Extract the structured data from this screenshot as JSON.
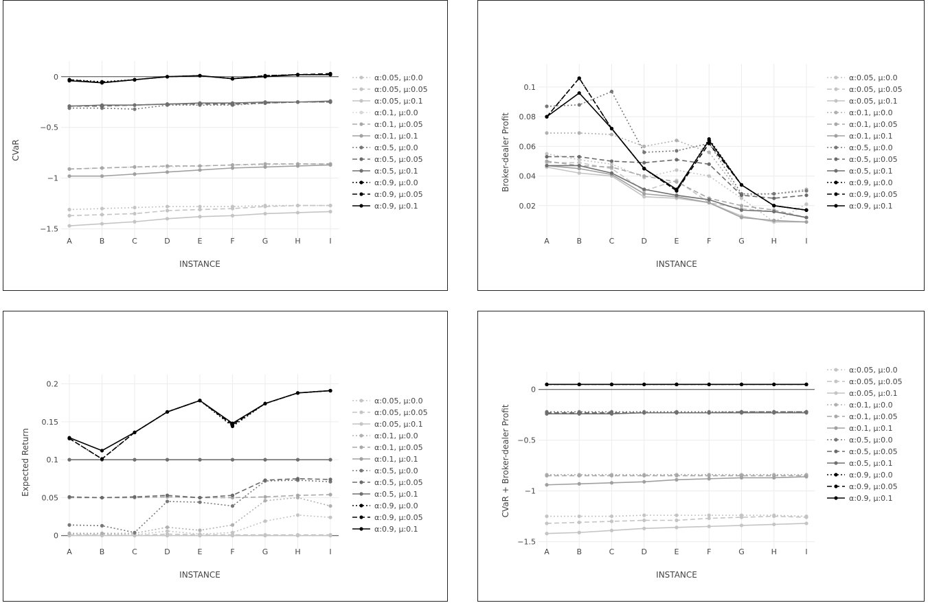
{
  "chart_data": [
    {
      "type": "line",
      "title": "",
      "xlabel": "INSTANCE",
      "ylabel": "CVaR",
      "ylim": [
        -1.55,
        0.1
      ],
      "yticks": [
        0,
        -0.5,
        -1,
        -1.5
      ],
      "ytick_labels": [
        "0",
        "−0.5",
        "−1",
        "−1.5"
      ],
      "zero_line": true,
      "grid": true,
      "legend_position": "right",
      "categories": [
        "A",
        "B",
        "C",
        "D",
        "E",
        "F",
        "G",
        "H",
        "I"
      ],
      "series": [
        {
          "name": "α:0.05, μ:0.0",
          "color": "#c4c4c4",
          "dash": "dot",
          "values": [
            -1.31,
            -1.3,
            -1.29,
            -1.28,
            -1.28,
            -1.28,
            -1.27,
            -1.27,
            -1.27
          ]
        },
        {
          "name": "α:0.05, μ:0.05",
          "color": "#c4c4c4",
          "dash": "dash",
          "values": [
            -1.37,
            -1.36,
            -1.35,
            -1.32,
            -1.31,
            -1.3,
            -1.28,
            -1.27,
            -1.27
          ]
        },
        {
          "name": "α:0.05, μ:0.1",
          "color": "#c4c4c4",
          "dash": "solid",
          "values": [
            -1.47,
            -1.45,
            -1.43,
            -1.4,
            -1.38,
            -1.37,
            -1.35,
            -1.34,
            -1.33
          ]
        },
        {
          "name": "α:0.1, μ:0.0",
          "color": "#d8d8d8",
          "dash": "dot",
          "values": [
            -0.91,
            -0.9,
            -0.89,
            -0.89,
            -0.88,
            -0.87,
            -0.87,
            -0.86,
            -0.86
          ]
        },
        {
          "name": "α:0.1, μ:0.05",
          "color": "#a8a8a8",
          "dash": "dash",
          "values": [
            -0.91,
            -0.9,
            -0.89,
            -0.88,
            -0.88,
            -0.87,
            -0.86,
            -0.86,
            -0.86
          ]
        },
        {
          "name": "α:0.1, μ:0.1",
          "color": "#a0a0a0",
          "dash": "solid",
          "values": [
            -0.98,
            -0.98,
            -0.96,
            -0.94,
            -0.92,
            -0.9,
            -0.89,
            -0.88,
            -0.87
          ]
        },
        {
          "name": "α:0.5, μ:0.0",
          "color": "#777777",
          "dash": "dot",
          "values": [
            -0.31,
            -0.31,
            -0.32,
            -0.28,
            -0.28,
            -0.28,
            -0.26,
            -0.25,
            -0.25
          ]
        },
        {
          "name": "α:0.5, μ:0.05",
          "color": "#6a6a6a",
          "dash": "dash",
          "values": [
            -0.29,
            -0.29,
            -0.28,
            -0.27,
            -0.27,
            -0.27,
            -0.26,
            -0.25,
            -0.25
          ]
        },
        {
          "name": "α:0.5, μ:0.1",
          "color": "#6f6f6f",
          "dash": "solid",
          "values": [
            -0.29,
            -0.28,
            -0.28,
            -0.27,
            -0.26,
            -0.26,
            -0.25,
            -0.25,
            -0.24
          ]
        },
        {
          "name": "α:0.9, μ:0.0",
          "color": "#000000",
          "dash": "dot",
          "values": [
            -0.03,
            -0.05,
            -0.03,
            0.0,
            0.01,
            -0.02,
            0.01,
            0.02,
            0.02
          ]
        },
        {
          "name": "α:0.9, μ:0.05",
          "color": "#000000",
          "dash": "dash",
          "values": [
            -0.03,
            -0.06,
            -0.03,
            0.0,
            0.01,
            -0.02,
            0.01,
            0.02,
            0.03
          ]
        },
        {
          "name": "α:0.9, μ:0.1",
          "color": "#000000",
          "dash": "solid",
          "values": [
            -0.04,
            -0.06,
            -0.03,
            0.0,
            0.01,
            -0.02,
            0.0,
            0.02,
            0.02
          ]
        }
      ]
    },
    {
      "type": "line",
      "title": "",
      "xlabel": "INSTANCE",
      "ylabel": "Broker-dealer Profit",
      "ylim": [
        0.0,
        0.112
      ],
      "yticks": [
        0.02,
        0.04,
        0.06,
        0.08,
        0.1
      ],
      "ytick_labels": [
        "0.02",
        "0.04",
        "0.06",
        "0.08",
        "0.1"
      ],
      "zero_line": false,
      "grid": true,
      "legend_position": "right",
      "categories": [
        "A",
        "B",
        "C",
        "D",
        "E",
        "F",
        "G",
        "H",
        "I"
      ],
      "series": [
        {
          "name": "α:0.05, μ:0.0",
          "color": "#c4c4c4",
          "dash": "dot",
          "values": [
            0.055,
            0.051,
            0.048,
            0.039,
            0.044,
            0.04,
            0.025,
            0.009,
            0.021
          ]
        },
        {
          "name": "α:0.05, μ:0.05",
          "color": "#c4c4c4",
          "dash": "dash",
          "values": [
            0.049,
            0.049,
            0.045,
            0.03,
            0.037,
            0.022,
            0.018,
            0.016,
            0.012
          ]
        },
        {
          "name": "α:0.05, μ:0.1",
          "color": "#c4c4c4",
          "dash": "solid",
          "values": [
            0.046,
            0.042,
            0.04,
            0.026,
            0.025,
            0.022,
            0.013,
            0.009,
            0.009
          ]
        },
        {
          "name": "α:0.1, μ:0.0",
          "color": "#b0b0b0",
          "dash": "dot",
          "values": [
            0.069,
            0.069,
            0.068,
            0.06,
            0.064,
            0.056,
            0.027,
            0.028,
            0.031
          ]
        },
        {
          "name": "α:0.1, μ:0.05",
          "color": "#a8a8a8",
          "dash": "dash",
          "values": [
            0.05,
            0.047,
            0.046,
            0.04,
            0.036,
            0.025,
            0.02,
            0.017,
            0.012
          ]
        },
        {
          "name": "α:0.1, μ:0.1",
          "color": "#a0a0a0",
          "dash": "solid",
          "values": [
            0.047,
            0.045,
            0.041,
            0.028,
            0.026,
            0.022,
            0.012,
            0.01,
            0.009
          ]
        },
        {
          "name": "α:0.5, μ:0.0",
          "color": "#777777",
          "dash": "dot",
          "values": [
            0.087,
            0.088,
            0.097,
            0.056,
            0.057,
            0.062,
            0.028,
            0.028,
            0.03
          ]
        },
        {
          "name": "α:0.5, μ:0.05",
          "color": "#6a6a6a",
          "dash": "dash",
          "values": [
            0.053,
            0.053,
            0.05,
            0.049,
            0.051,
            0.048,
            0.027,
            0.025,
            0.027
          ]
        },
        {
          "name": "α:0.5, μ:0.1",
          "color": "#6f6f6f",
          "dash": "solid",
          "values": [
            0.047,
            0.047,
            0.042,
            0.031,
            0.027,
            0.024,
            0.017,
            0.016,
            0.012
          ]
        },
        {
          "name": "α:0.9, μ:0.0",
          "color": "#000000",
          "dash": "dot",
          "values": [
            0.08,
            0.106,
            0.072,
            0.045,
            0.03,
            0.065,
            0.034,
            0.02,
            0.017
          ]
        },
        {
          "name": "α:0.9, μ:0.05",
          "color": "#000000",
          "dash": "dash",
          "values": [
            0.08,
            0.106,
            0.072,
            0.045,
            0.03,
            0.062,
            0.034,
            0.02,
            0.017
          ]
        },
        {
          "name": "α:0.9, μ:0.1",
          "color": "#000000",
          "dash": "solid",
          "values": [
            0.08,
            0.096,
            0.072,
            0.045,
            0.031,
            0.064,
            0.034,
            0.02,
            0.017
          ]
        }
      ]
    },
    {
      "type": "line",
      "title": "",
      "xlabel": "INSTANCE",
      "ylabel": "Expected Return",
      "ylim": [
        -0.012,
        0.205
      ],
      "yticks": [
        0,
        0.05,
        0.1,
        0.15,
        0.2
      ],
      "ytick_labels": [
        "0",
        "0.05",
        "0.1",
        "0.15",
        "0.2"
      ],
      "zero_line": true,
      "grid": true,
      "legend_position": "right",
      "categories": [
        "A",
        "B",
        "C",
        "D",
        "E",
        "F",
        "G",
        "H",
        "I"
      ],
      "series": [
        {
          "name": "α:0.05, μ:0.0",
          "color": "#c4c4c4",
          "dash": "dot",
          "values": [
            0.002,
            0.002,
            0.001,
            0.006,
            0.002,
            0.004,
            0.019,
            0.027,
            0.024
          ]
        },
        {
          "name": "α:0.05, μ:0.05",
          "color": "#c4c4c4",
          "dash": "dash",
          "values": [
            0.001,
            0.001,
            0.0,
            0.002,
            0.001,
            0.001,
            0.001,
            0.001,
            0.001
          ]
        },
        {
          "name": "α:0.05, μ:0.1",
          "color": "#c4c4c4",
          "dash": "solid",
          "values": [
            0.0,
            0.0,
            0.0,
            0.0,
            0.0,
            0.0,
            0.0,
            0.0,
            0.0
          ]
        },
        {
          "name": "α:0.1, μ:0.0",
          "color": "#b0b0b0",
          "dash": "dot",
          "values": [
            0.003,
            0.003,
            0.003,
            0.011,
            0.007,
            0.014,
            0.046,
            0.05,
            0.039
          ]
        },
        {
          "name": "α:0.1, μ:0.05",
          "color": "#a8a8a8",
          "dash": "dash",
          "values": [
            0.05,
            0.05,
            0.05,
            0.051,
            0.05,
            0.05,
            0.051,
            0.053,
            0.054
          ]
        },
        {
          "name": "α:0.1, μ:0.1",
          "color": "#a0a0a0",
          "dash": "solid",
          "values": [
            0.1,
            0.1,
            0.1,
            0.1,
            0.1,
            0.1,
            0.1,
            0.1,
            0.1
          ]
        },
        {
          "name": "α:0.5, μ:0.0",
          "color": "#777777",
          "dash": "dot",
          "values": [
            0.014,
            0.013,
            0.004,
            0.045,
            0.044,
            0.039,
            0.072,
            0.073,
            0.071
          ]
        },
        {
          "name": "α:0.5, μ:0.05",
          "color": "#6a6a6a",
          "dash": "dash",
          "values": [
            0.051,
            0.05,
            0.051,
            0.053,
            0.05,
            0.053,
            0.073,
            0.075,
            0.074
          ]
        },
        {
          "name": "α:0.5, μ:0.1",
          "color": "#6f6f6f",
          "dash": "solid",
          "values": [
            0.1,
            0.1,
            0.1,
            0.1,
            0.1,
            0.1,
            0.1,
            0.1,
            0.1
          ]
        },
        {
          "name": "α:0.9, μ:0.0",
          "color": "#000000",
          "dash": "dot",
          "values": [
            0.128,
            0.101,
            0.136,
            0.163,
            0.178,
            0.144,
            0.174,
            0.188,
            0.191
          ]
        },
        {
          "name": "α:0.9, μ:0.05",
          "color": "#000000",
          "dash": "dash",
          "values": [
            0.128,
            0.101,
            0.136,
            0.163,
            0.178,
            0.146,
            0.174,
            0.188,
            0.191
          ]
        },
        {
          "name": "α:0.9, μ:0.1",
          "color": "#000000",
          "dash": "solid",
          "values": [
            0.129,
            0.112,
            0.136,
            0.163,
            0.178,
            0.148,
            0.174,
            0.188,
            0.191
          ]
        }
      ]
    },
    {
      "type": "line",
      "title": "",
      "xlabel": "INSTANCE",
      "ylabel": "CVaR + Broker-dealer Profit",
      "ylim": [
        -1.53,
        0.12
      ],
      "yticks": [
        0,
        -0.5,
        -1,
        -1.5
      ],
      "ytick_labels": [
        "0",
        "−0.5",
        "−1",
        "−1.5"
      ],
      "zero_line": true,
      "grid": true,
      "legend_position": "right",
      "categories": [
        "A",
        "B",
        "C",
        "D",
        "E",
        "F",
        "G",
        "H",
        "I"
      ],
      "series": [
        {
          "name": "α:0.05, μ:0.0",
          "color": "#c4c4c4",
          "dash": "dot",
          "values": [
            -1.25,
            -1.25,
            -1.25,
            -1.24,
            -1.24,
            -1.24,
            -1.24,
            -1.24,
            -1.25
          ]
        },
        {
          "name": "α:0.05, μ:0.05",
          "color": "#c4c4c4",
          "dash": "dash",
          "values": [
            -1.32,
            -1.31,
            -1.3,
            -1.29,
            -1.29,
            -1.27,
            -1.26,
            -1.25,
            -1.26
          ]
        },
        {
          "name": "α:0.05, μ:0.1",
          "color": "#c4c4c4",
          "dash": "solid",
          "values": [
            -1.42,
            -1.41,
            -1.39,
            -1.37,
            -1.36,
            -1.35,
            -1.34,
            -1.33,
            -1.32
          ]
        },
        {
          "name": "α:0.1, μ:0.0",
          "color": "#b0b0b0",
          "dash": "dot",
          "values": [
            -0.84,
            -0.84,
            -0.84,
            -0.84,
            -0.84,
            -0.84,
            -0.84,
            -0.84,
            -0.84
          ]
        },
        {
          "name": "α:0.1, μ:0.05",
          "color": "#a8a8a8",
          "dash": "dash",
          "values": [
            -0.85,
            -0.85,
            -0.85,
            -0.85,
            -0.85,
            -0.85,
            -0.85,
            -0.85,
            -0.85
          ]
        },
        {
          "name": "α:0.1, μ:0.1",
          "color": "#a0a0a0",
          "dash": "solid",
          "values": [
            -0.94,
            -0.93,
            -0.92,
            -0.91,
            -0.89,
            -0.88,
            -0.87,
            -0.87,
            -0.86
          ]
        },
        {
          "name": "α:0.5, μ:0.0",
          "color": "#777777",
          "dash": "dot",
          "values": [
            -0.22,
            -0.22,
            -0.22,
            -0.22,
            -0.22,
            -0.22,
            -0.22,
            -0.22,
            -0.22
          ]
        },
        {
          "name": "α:0.5, μ:0.05",
          "color": "#6a6a6a",
          "dash": "dash",
          "values": [
            -0.23,
            -0.23,
            -0.23,
            -0.23,
            -0.23,
            -0.23,
            -0.22,
            -0.22,
            -0.22
          ]
        },
        {
          "name": "α:0.5, μ:0.1",
          "color": "#6f6f6f",
          "dash": "solid",
          "values": [
            -0.24,
            -0.24,
            -0.24,
            -0.23,
            -0.23,
            -0.23,
            -0.23,
            -0.23,
            -0.23
          ]
        },
        {
          "name": "α:0.9, μ:0.0",
          "color": "#000000",
          "dash": "dot",
          "values": [
            0.05,
            0.05,
            0.05,
            0.05,
            0.05,
            0.05,
            0.05,
            0.05,
            0.05
          ]
        },
        {
          "name": "α:0.9, μ:0.05",
          "color": "#000000",
          "dash": "dash",
          "values": [
            0.05,
            0.05,
            0.05,
            0.05,
            0.05,
            0.05,
            0.05,
            0.05,
            0.05
          ]
        },
        {
          "name": "α:0.9, μ:0.1",
          "color": "#000000",
          "dash": "solid",
          "values": [
            0.05,
            0.05,
            0.05,
            0.05,
            0.05,
            0.05,
            0.05,
            0.05,
            0.05
          ]
        }
      ]
    }
  ]
}
